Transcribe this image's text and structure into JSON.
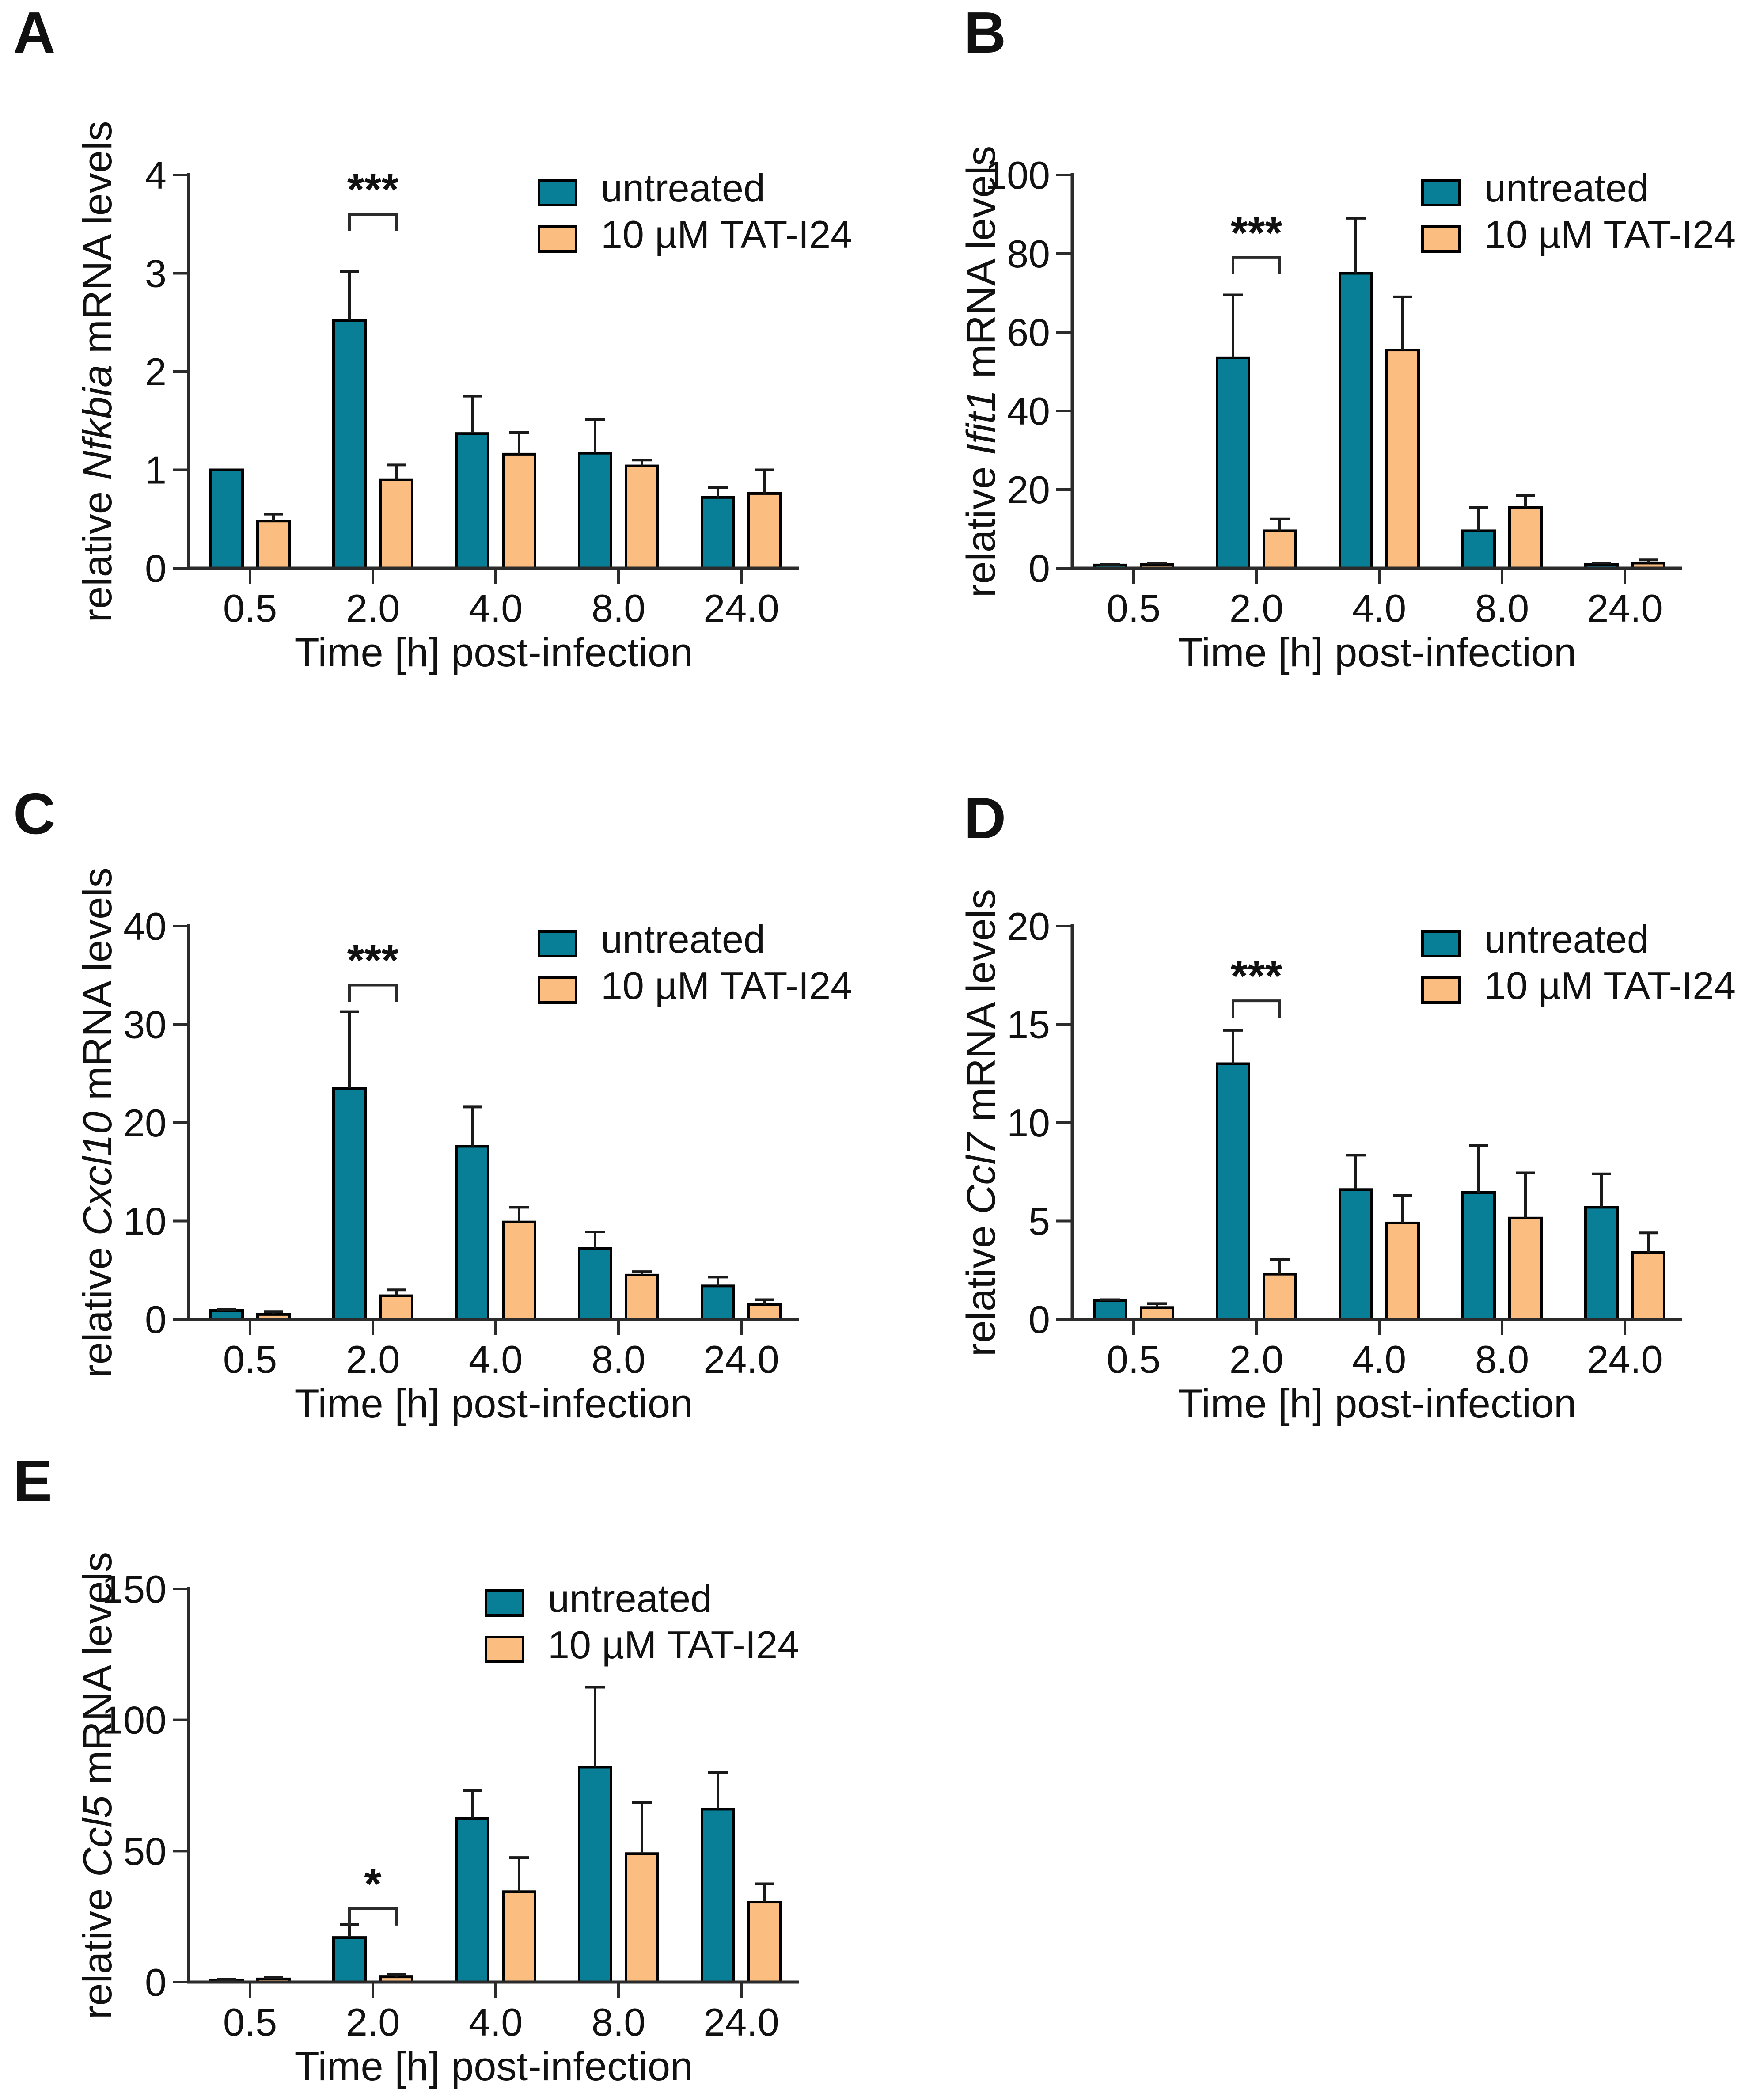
{
  "figure": {
    "background": "#ffffff",
    "palette": {
      "untreated": "#097e97",
      "treated": "#fcbe80",
      "bar_outline": "#000000",
      "axis": "#2b2b2b",
      "text": "#111111"
    }
  },
  "chart_data": [
    {
      "type": "bar",
      "label": "A",
      "ylabel": {
        "prefix": "relative ",
        "gene": "Nfkbia",
        "suffix": " mRNA levels"
      },
      "xlabel": "Time [h] post-infection",
      "categories": [
        "0.5",
        "2.0",
        "4.0",
        "8.0",
        "24.0"
      ],
      "ylim": [
        0,
        4
      ],
      "yticks": [
        0,
        1,
        2,
        3,
        4
      ],
      "grid": false,
      "legend_position": "top-right",
      "series": [
        {
          "name": "untreated",
          "color_key": "untreated",
          "values": [
            1.0,
            2.52,
            1.37,
            1.17,
            0.72
          ],
          "errors": [
            0,
            0.5,
            0.38,
            0.34,
            0.1
          ]
        },
        {
          "name": "10 µM TAT-I24",
          "color_key": "treated",
          "values": [
            0.48,
            0.9,
            1.16,
            1.04,
            0.76
          ],
          "errors": [
            0.07,
            0.15,
            0.22,
            0.06,
            0.24
          ]
        }
      ],
      "significance": {
        "category": "2.0",
        "label": "***",
        "line_y": 3.6
      }
    },
    {
      "type": "bar",
      "label": "B",
      "ylabel": {
        "prefix": "relative ",
        "gene": "Ifit1",
        "suffix": " mRNA levels"
      },
      "xlabel": "Time [h] post-infection",
      "categories": [
        "0.5",
        "2.0",
        "4.0",
        "8.0",
        "24.0"
      ],
      "ylim": [
        0,
        100
      ],
      "yticks": [
        0,
        20,
        40,
        60,
        80,
        100
      ],
      "grid": false,
      "legend_position": "top-right",
      "series": [
        {
          "name": "untreated",
          "color_key": "untreated",
          "values": [
            0.8,
            53.5,
            75,
            9.5,
            1.0
          ],
          "errors": [
            0.2,
            16,
            14,
            6,
            0.3
          ]
        },
        {
          "name": "10 µM TAT-I24",
          "color_key": "treated",
          "values": [
            1.0,
            9.5,
            55.5,
            15.5,
            1.3
          ],
          "errors": [
            0.3,
            3,
            13.5,
            3,
            0.8
          ]
        }
      ],
      "significance": {
        "category": "2.0",
        "label": "***",
        "line_y": 79
      }
    },
    {
      "type": "bar",
      "label": "C",
      "ylabel": {
        "prefix": "relative ",
        "gene": "Cxcl10",
        "suffix": " mRNA levels"
      },
      "xlabel": "Time [h] post-infection",
      "categories": [
        "0.5",
        "2.0",
        "4.0",
        "8.0",
        "24.0"
      ],
      "ylim": [
        0,
        40
      ],
      "yticks": [
        0,
        10,
        20,
        30,
        40
      ],
      "grid": false,
      "legend_position": "top-right",
      "series": [
        {
          "name": "untreated",
          "color_key": "untreated",
          "values": [
            0.9,
            23.5,
            17.6,
            7.2,
            3.4
          ],
          "errors": [
            0.1,
            7.8,
            4.0,
            1.7,
            0.9
          ]
        },
        {
          "name": "10 µM TAT-I24",
          "color_key": "treated",
          "values": [
            0.5,
            2.4,
            9.9,
            4.5,
            1.5
          ],
          "errors": [
            0.3,
            0.6,
            1.5,
            0.35,
            0.5
          ]
        }
      ],
      "significance": {
        "category": "2.0",
        "label": "***",
        "line_y": 34
      }
    },
    {
      "type": "bar",
      "label": "D",
      "ylabel": {
        "prefix": "relative ",
        "gene": "Ccl7",
        "suffix": " mRNA levels"
      },
      "xlabel": "Time [h] post-infection",
      "categories": [
        "0.5",
        "2.0",
        "4.0",
        "8.0",
        "24.0"
      ],
      "ylim": [
        0,
        20
      ],
      "yticks": [
        0,
        5,
        10,
        15,
        20
      ],
      "grid": false,
      "legend_position": "top-right",
      "series": [
        {
          "name": "untreated",
          "color_key": "untreated",
          "values": [
            0.95,
            13.0,
            6.6,
            6.45,
            5.7
          ],
          "errors": [
            0.05,
            1.7,
            1.75,
            2.4,
            1.7
          ]
        },
        {
          "name": "10 µM TAT-I24",
          "color_key": "treated",
          "values": [
            0.6,
            2.3,
            4.9,
            5.15,
            3.4
          ],
          "errors": [
            0.2,
            0.75,
            1.4,
            2.3,
            1.0
          ]
        }
      ],
      "significance": {
        "category": "2.0",
        "label": "***",
        "line_y": 16.2
      }
    },
    {
      "type": "bar",
      "label": "E",
      "ylabel": {
        "prefix": "relative ",
        "gene": "Ccl5",
        "suffix": " mRNA levels"
      },
      "xlabel": "Time [h] post-infection",
      "categories": [
        "0.5",
        "2.0",
        "4.0",
        "8.0",
        "24.0"
      ],
      "ylim": [
        0,
        150
      ],
      "yticks": [
        0,
        50,
        100,
        150
      ],
      "grid": false,
      "legend_position": "top-right",
      "series": [
        {
          "name": "untreated",
          "color_key": "untreated",
          "values": [
            0.8,
            17,
            62.5,
            82,
            66
          ],
          "errors": [
            0.3,
            5,
            10.5,
            30.5,
            14
          ]
        },
        {
          "name": "10 µM TAT-I24",
          "color_key": "treated",
          "values": [
            1.2,
            2,
            34.5,
            49,
            30.5
          ],
          "errors": [
            0.5,
            1,
            13,
            19.5,
            7
          ]
        }
      ],
      "significance": {
        "category": "2.0",
        "label": "*",
        "line_y": 28
      }
    }
  ]
}
